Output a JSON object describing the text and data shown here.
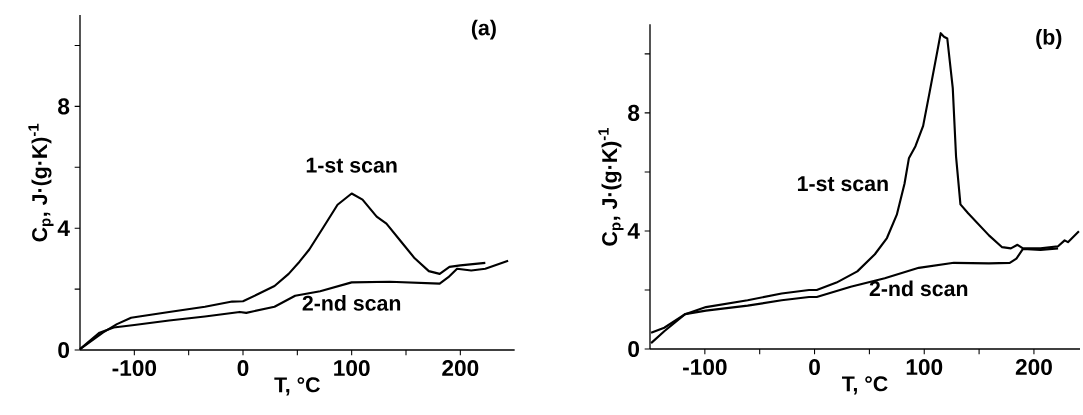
{
  "chart_data": [
    {
      "type": "line",
      "title": "(a)",
      "xlabel": "T, °C",
      "ylabel": "C$_{p}$, J·(g·K)$^{-1}$",
      "xlim": [
        -150,
        250
      ],
      "ylim": [
        0,
        11
      ],
      "marker": "none",
      "line_style": "solid",
      "xticks": [
        -100,
        {
          "value": -50,
          "label": null
        },
        0,
        {
          "value": 50,
          "label": null
        },
        100,
        {
          "value": 150,
          "label": null
        },
        200
      ],
      "yticks": [
        0,
        {
          "value": 2,
          "label": null
        },
        4,
        {
          "value": 6,
          "label": null
        },
        8,
        {
          "value": 10,
          "label": null
        }
      ],
      "series": [
        {
          "name": "1-st scan",
          "color": "#000000",
          "x": [
            -150,
            -142,
            -129,
            -116,
            -103,
            -94,
            -68,
            -35,
            -10,
            0,
            13,
            29,
            42,
            52,
            61,
            74,
            87,
            100,
            110,
            123,
            132,
            145,
            158,
            171,
            181,
            190,
            200,
            223
          ],
          "values": [
            0.03,
            0.23,
            0.57,
            0.85,
            1.06,
            1.11,
            1.25,
            1.42,
            1.59,
            1.6,
            1.82,
            2.1,
            2.5,
            2.9,
            3.3,
            4.03,
            4.77,
            5.14,
            4.94,
            4.38,
            4.15,
            3.58,
            3.01,
            2.59,
            2.5,
            2.73,
            2.78,
            2.86
          ]
        },
        {
          "name": "2-nd scan",
          "color": "#000000",
          "x": [
            -150,
            -132,
            -119,
            -100,
            -68,
            -35,
            -3,
            3,
            29,
            48,
            71,
            100,
            135,
            181,
            189,
            197,
            210,
            223,
            244
          ],
          "values": [
            0.03,
            0.57,
            0.74,
            0.82,
            0.97,
            1.1,
            1.25,
            1.22,
            1.42,
            1.78,
            1.93,
            2.22,
            2.24,
            2.18,
            2.39,
            2.67,
            2.61,
            2.67,
            2.93
          ]
        }
      ]
    },
    {
      "type": "line",
      "title": "(b)",
      "xlabel": "T, °C",
      "ylabel": "C$_{p}$, J·(g·K)$^{-1}$",
      "xlim": [
        -150,
        242
      ],
      "ylim": [
        0,
        11
      ],
      "xticks": [
        -100,
        {
          "value": -50,
          "label": null
        },
        0,
        {
          "value": 50,
          "label": null
        },
        100,
        {
          "value": 150,
          "label": null
        },
        200
      ],
      "yticks": [
        0,
        {
          "value": 2,
          "label": null
        },
        4,
        {
          "value": 6,
          "label": null
        },
        8,
        {
          "value": 10,
          "label": null
        }
      ],
      "marker": "none",
      "line_style": "solid",
      "series": [
        {
          "name": "1-st scan",
          "color": "#000000",
          "x": [
            -149,
            -137,
            -118,
            -99,
            -61,
            -30,
            -5,
            2,
            20,
            39,
            55,
            66,
            75,
            82,
            86,
            92,
            99,
            105,
            112,
            115,
            118,
            121,
            126,
            129,
            133,
            140,
            159,
            171,
            179,
            185,
            190,
            206,
            222,
            228,
            231,
            241
          ],
          "values": [
            0.2,
            0.6,
            1.18,
            1.42,
            1.65,
            1.88,
            2.0,
            2.0,
            2.25,
            2.63,
            3.21,
            3.76,
            4.55,
            5.6,
            6.46,
            6.87,
            7.56,
            8.72,
            10.1,
            10.7,
            10.58,
            10.52,
            8.84,
            6.52,
            4.9,
            4.6,
            3.85,
            3.45,
            3.41,
            3.53,
            3.41,
            3.41,
            3.48,
            3.68,
            3.62,
            3.99
          ]
        },
        {
          "name": "2-nd scan",
          "color": "#000000",
          "x": [
            -149,
            -137,
            -118,
            -99,
            -61,
            -30,
            -5,
            2,
            33,
            64,
            95,
            127,
            159,
            178,
            184,
            190,
            206,
            222
          ],
          "values": [
            0.55,
            0.72,
            1.18,
            1.3,
            1.47,
            1.65,
            1.76,
            1.76,
            2.11,
            2.4,
            2.75,
            2.92,
            2.9,
            2.92,
            3.06,
            3.39,
            3.36,
            3.41
          ]
        }
      ]
    }
  ]
}
